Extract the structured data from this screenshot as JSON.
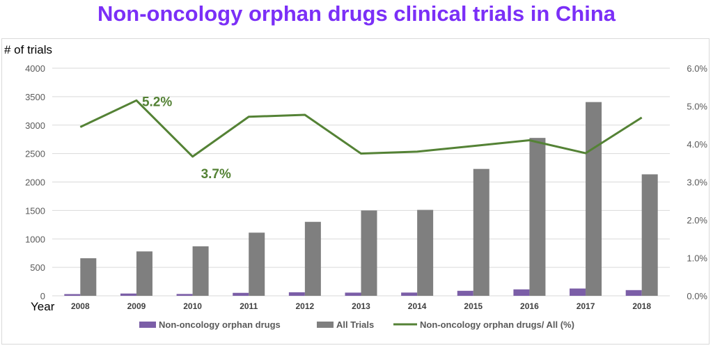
{
  "chart_data": {
    "type": "bar",
    "title": "Non-oncology orphan drugs clinical trials in China",
    "ylabel": "# of trials",
    "xlabel": "Year",
    "categories": [
      "2008",
      "2009",
      "2010",
      "2011",
      "2012",
      "2013",
      "2014",
      "2015",
      "2016",
      "2017",
      "2018"
    ],
    "ylim": [
      0,
      4000
    ],
    "yticks": [
      "0",
      "500",
      "1000",
      "1500",
      "2000",
      "2500",
      "3000",
      "3500",
      "4000"
    ],
    "y2lim": [
      0,
      6.0
    ],
    "y2ticks": [
      "0.0%",
      "1.0%",
      "2.0%",
      "3.0%",
      "4.0%",
      "5.0%",
      "6.0%"
    ],
    "series": [
      {
        "name": "Non-oncology orphan drugs",
        "type": "bar",
        "axis": "left",
        "color": "#7b5ea7",
        "values": [
          30,
          40,
          32,
          52,
          62,
          56,
          57,
          88,
          113,
          128,
          100
        ]
      },
      {
        "name": "All Trials",
        "type": "bar",
        "axis": "left",
        "color": "#7f7f7f",
        "values": [
          660,
          780,
          870,
          1110,
          1300,
          1500,
          1510,
          2230,
          2775,
          3405,
          2135
        ]
      },
      {
        "name": "Non-oncology orphan drugs/ All (%)",
        "type": "line",
        "axis": "right",
        "color": "#548235",
        "values": [
          4.45,
          5.15,
          3.67,
          4.72,
          4.77,
          3.75,
          3.8,
          3.95,
          4.1,
          3.76,
          4.7
        ]
      }
    ],
    "annotations": [
      {
        "text": "5.2%",
        "category": "2009"
      },
      {
        "text": "3.7%",
        "category": "2010"
      }
    ],
    "legend_position": "bottom",
    "grid": true
  }
}
